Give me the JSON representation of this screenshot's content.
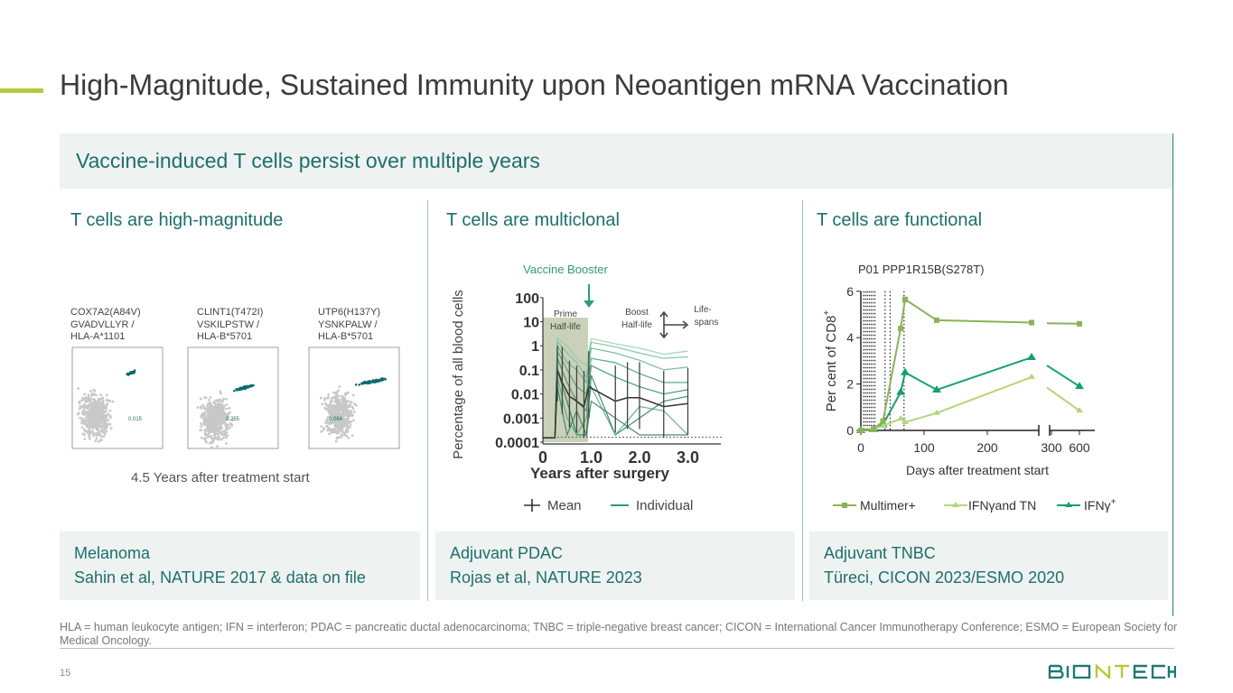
{
  "title": "High-Magnitude, Sustained Immunity upon Neoantigen mRNA Vaccination",
  "banner": "Vaccine-induced T cells persist over multiple years",
  "columns": [
    {
      "heading": "T cells are high-magnitude",
      "ref_line1": "Melanoma",
      "ref_line2": "Sahin et al, NATURE 2017 & data on file"
    },
    {
      "heading": "T cells are multiclonal",
      "ref_line1": "Adjuvant PDAC",
      "ref_line2": "Rojas et al, NATURE 2023"
    },
    {
      "heading": "T cells are functional",
      "ref_line1": "Adjuvant TNBC",
      "ref_line2": "Türeci, CICON 2023/ESMO 2020"
    }
  ],
  "flow": {
    "panels": [
      {
        "line1": "COX7A2(A84V)",
        "line2": "GVADVLLYR /",
        "line3": "HLA-A*1101",
        "value": "0.015"
      },
      {
        "line1": "CLINT1(T472I)",
        "line2": "VSKILPSTW /",
        "line3": "HLA-B*5701",
        "value": "0.255"
      },
      {
        "line1": "UTP6(H137Y)",
        "line2": "YSNKPALW /",
        "line3": "HLA-B*5701",
        "value": "0.064"
      }
    ],
    "caption": "4.5 Years after treatment start",
    "colors": {
      "background": "#c8c8c8",
      "positive": "#0f6a6e"
    }
  },
  "chart_data": [
    {
      "type": "line",
      "title": "",
      "xlabel": "Years after surgery",
      "ylabel": "Percentage of all blood cells",
      "yscale": "log",
      "ylim": [
        0.0001,
        100
      ],
      "xlim": [
        0,
        3.7
      ],
      "yticks": [
        "100",
        "10",
        "1",
        "0.1",
        "0.01",
        "0.001",
        "0.0001"
      ],
      "xticks": [
        "0",
        "1.0",
        "2.0",
        "3.0"
      ],
      "annotations": {
        "booster": "Vaccine Booster",
        "prime": "Prime",
        "prime2": "Half-life",
        "boost": "Boost",
        "boost2": "Half-life",
        "life": "Life-",
        "life2": "spans"
      },
      "legend": {
        "mean": "Mean",
        "individual": "Individual"
      },
      "mean": {
        "x": [
          0,
          0.25,
          0.3,
          0.4,
          0.55,
          0.7,
          0.85,
          0.95,
          1.5,
          1.75,
          2.0,
          2.5,
          3.0
        ],
        "y": [
          0.00015,
          0.00015,
          0.1,
          0.03,
          0.008,
          0.005,
          0.003,
          0.02,
          0.005,
          0.007,
          0.007,
          0.003,
          0.004
        ]
      },
      "individual": [
        {
          "x": [
            0.25,
            0.3,
            0.5,
            0.7,
            0.9,
            1.0,
            1.5,
            2.0,
            2.5,
            3.0
          ],
          "y": [
            0.0002,
            2,
            1,
            0.3,
            0.15,
            2,
            1.2,
            0.8,
            0.45,
            0.6
          ]
        },
        {
          "x": [
            0.25,
            0.3,
            0.5,
            0.7,
            0.9,
            1.0,
            1.5,
            2.0,
            2.5,
            3.0
          ],
          "y": [
            0.0002,
            1.5,
            0.5,
            0.2,
            0.05,
            1.4,
            0.9,
            0.5,
            0.3,
            0.35
          ]
        },
        {
          "x": [
            0.25,
            0.3,
            0.5,
            0.7,
            0.9,
            1.0,
            1.5,
            2.0,
            2.5,
            3.0
          ],
          "y": [
            0.0002,
            1,
            0.2,
            0.1,
            0.03,
            0.8,
            0.5,
            0.25,
            0.1,
            0.13
          ]
        },
        {
          "x": [
            0.25,
            0.3,
            0.5,
            0.7,
            0.9,
            1.0,
            1.5,
            2.0,
            2.5,
            3.0
          ],
          "y": [
            0.0002,
            0.6,
            0.1,
            0.02,
            0.01,
            0.3,
            0.2,
            0.07,
            0.03,
            0.03
          ]
        },
        {
          "x": [
            0.25,
            0.3,
            0.5,
            0.7,
            0.9,
            1.0,
            1.5,
            2.0,
            2.5,
            3.0
          ],
          "y": [
            0.0002,
            0.3,
            0.03,
            0.005,
            0.002,
            0.15,
            0.05,
            0.02,
            0.01,
            0.015
          ]
        },
        {
          "x": [
            0.25,
            0.3,
            0.5,
            0.7,
            0.9,
            1.0,
            1.5,
            2.0,
            2.5,
            3.0
          ],
          "y": [
            0.0002,
            0.1,
            0.005,
            0.0002,
            0.0002,
            0.06,
            0.0002,
            0.001,
            0.005,
            0.008
          ]
        },
        {
          "x": [
            0.25,
            0.3,
            0.5,
            0.7,
            0.9,
            1.0,
            1.5,
            2.0,
            2.5,
            3.0
          ],
          "y": [
            0.0002,
            0.05,
            0.001,
            0.0002,
            0.001,
            0.02,
            0.0002,
            0.003,
            0.002,
            0.0002
          ]
        },
        {
          "x": [
            0.25,
            0.3,
            0.5,
            0.7,
            0.9,
            1.0,
            1.5,
            2.0,
            2.5,
            3.0
          ],
          "y": [
            0.0002,
            0.02,
            0.0002,
            0.002,
            0.0002,
            0.005,
            0.001,
            0.0002,
            0.0002,
            0.0002
          ]
        }
      ]
    },
    {
      "type": "line",
      "title": "P01 PPP1R15B(S278T)",
      "xlabel": "Days after treatment start",
      "ylabel": "Per cent of CD8",
      "ylabel_sup": "+",
      "ylim": [
        0,
        6
      ],
      "yticks": [
        "0",
        "2",
        "4",
        "6"
      ],
      "xticks": [
        "0",
        "100",
        "200",
        "300",
        "600"
      ],
      "x_break": true,
      "series": [
        {
          "name": "Multimer+",
          "color": "#8db255",
          "marker": "square",
          "x": [
            0,
            20,
            35,
            63,
            70,
            120,
            270
          ],
          "y": [
            0,
            0.05,
            0.4,
            4.4,
            5.65,
            4.75,
            4.65
          ],
          "after_break": {
            "start": 4.62,
            "x": 600,
            "y": 4.6
          }
        },
        {
          "name": "IFNγand TN",
          "color": "#b4d57a",
          "marker": "triangle",
          "x": [
            0,
            20,
            35,
            63,
            70,
            120,
            270
          ],
          "y": [
            0,
            0.05,
            0.2,
            0.5,
            0.35,
            0.75,
            2.3
          ],
          "after_break": {
            "start": 1.85,
            "x": 600,
            "y": 0.85
          }
        },
        {
          "name": "IFNγ",
          "sup": "+",
          "color": "#16a070",
          "marker": "triangle",
          "x": [
            0,
            20,
            35,
            63,
            70,
            120,
            270
          ],
          "y": [
            0,
            0.05,
            0.25,
            1.65,
            2.5,
            1.75,
            3.15
          ],
          "after_break": {
            "start": 2.8,
            "x": 600,
            "y": 1.9
          }
        }
      ]
    }
  ],
  "footnote": "HLA = human leukocyte antigen; IFN = interferon; PDAC = pancreatic ductal adenocarcinoma; TNBC = triple-negative breast cancer; CICON = International Cancer Immunotherapy Conference; ESMO = European Society for Medical Oncology.",
  "page_number": "15",
  "logo": "BIONTECH"
}
